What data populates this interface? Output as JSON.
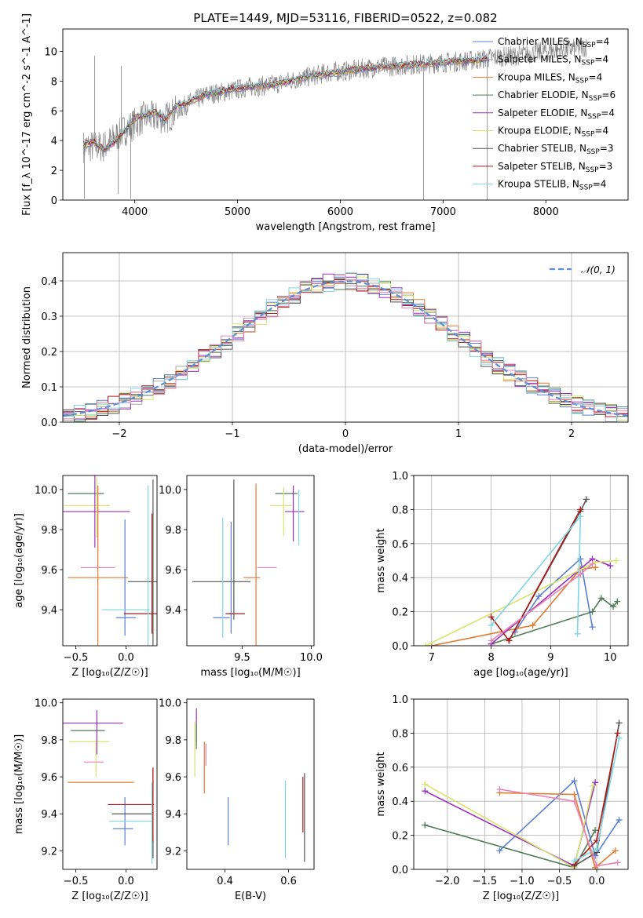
{
  "figure": {
    "title": "PLATE=1449, MJD=53116, FIBERID=0522, z=0.082"
  },
  "colors": {
    "Chabrier MILES": "#5b7fd6",
    "Salpeter MILES": "#a8a8a8",
    "Kroupa MILES": "#e07b2e",
    "Chabrier ELODIE": "#4e7a55",
    "Salpeter ELODIE": "#9b30c0",
    "Kroupa ELODIE": "#d6e56b",
    "Chabrier STELIB": "#555555",
    "Salpeter STELIB": "#b01818",
    "Kroupa STELIB": "#7fd6e0",
    "data": "#7f7f7f",
    "normal": "#5b8fd6",
    "pink": "#e884b4"
  },
  "legend": {
    "entries": [
      {
        "name": "Chabrier MILES",
        "nssp": "4"
      },
      {
        "name": "Salpeter MILES",
        "nssp": "4"
      },
      {
        "name": "Kroupa MILES",
        "nssp": "4"
      },
      {
        "name": "Chabrier ELODIE",
        "nssp": "6"
      },
      {
        "name": "Salpeter ELODIE",
        "nssp": "4"
      },
      {
        "name": "Kroupa ELODIE",
        "nssp": "4"
      },
      {
        "name": "Chabrier STELIB",
        "nssp": "3"
      },
      {
        "name": "Salpeter STELIB",
        "nssp": "3"
      },
      {
        "name": "Kroupa STELIB",
        "nssp": "4"
      }
    ],
    "normal_label": "𝒩(0, 1)"
  },
  "chart_data": [
    {
      "id": "spectrum",
      "type": "line",
      "xlabel": "wavelength [Angstrom, rest frame]",
      "ylabel": "Flux [f_λ 10^-17 erg cm^-2 s^-1 A^-1]",
      "xlim": [
        3300,
        8800
      ],
      "ylim": [
        0,
        11.5
      ],
      "xticks": [
        4000,
        5000,
        6000,
        7000,
        8000
      ],
      "yticks": [
        0,
        2,
        4,
        6,
        8,
        10
      ],
      "grid": false,
      "legend_position": "top-right",
      "model_trend": {
        "x": [
          3500,
          3600,
          3700,
          3800,
          3900,
          4000,
          4100,
          4200,
          4300,
          4400,
          4500,
          4700,
          4900,
          5100,
          5300,
          5500,
          5700,
          5900,
          6100,
          6300,
          6500,
          6700,
          6900,
          7100,
          7300,
          7400
        ],
        "y": [
          3.7,
          3.9,
          3.4,
          3.9,
          4.6,
          5.5,
          5.7,
          5.9,
          5.4,
          6.3,
          6.5,
          7.1,
          7.4,
          7.6,
          7.7,
          8.0,
          8.3,
          8.5,
          8.7,
          8.9,
          9.0,
          9.1,
          9.2,
          9.3,
          9.4,
          9.5
        ]
      },
      "data_trend": {
        "x": [
          3500,
          3700,
          3900,
          4100,
          4300,
          4500,
          4700,
          4900,
          5100,
          5300,
          5500,
          5700,
          5900,
          6100,
          6300,
          6500,
          6700,
          6900,
          7100,
          7300,
          7500,
          7700,
          7900,
          8100,
          8300,
          8400
        ],
        "y": [
          3.6,
          3.6,
          4.7,
          5.6,
          5.5,
          6.4,
          7.1,
          7.3,
          7.6,
          7.7,
          8.0,
          8.3,
          8.6,
          8.7,
          8.9,
          9.0,
          9.1,
          9.2,
          9.3,
          9.4,
          9.6,
          9.7,
          9.9,
          10.1,
          10.2,
          10.3
        ]
      },
      "data_noise_amplitude": 0.7,
      "spikes": [
        {
          "x": 3510,
          "y": 0.1
        },
        {
          "x": 3610,
          "y": 9.7
        },
        {
          "x": 3840,
          "y": 0.4
        },
        {
          "x": 3870,
          "y": 9.0
        },
        {
          "x": 3960,
          "y": 0.1
        },
        {
          "x": 6810,
          "y": 0.0
        },
        {
          "x": 7430,
          "y": 0.0
        }
      ]
    },
    {
      "id": "residuals",
      "type": "histogram",
      "xlabel": "(data-model)/error",
      "ylabel": "Normed distribution",
      "xlim": [
        -2.5,
        2.5
      ],
      "ylim": [
        0,
        0.48
      ],
      "xticks": [
        -2,
        -1,
        0,
        1,
        2
      ],
      "yticks": [
        0.0,
        0.1,
        0.2,
        0.3,
        0.4
      ],
      "grid": true,
      "bin_width": 0.1,
      "legend_position": "top-right",
      "normal": {
        "mean": 0,
        "sigma": 1
      }
    },
    {
      "id": "age-vs-Z",
      "type": "scatter",
      "xlabel": "Z [log₁₀(Z/Z☉)]",
      "ylabel": "age  [log₁₀(age/yr)]",
      "xlim": [
        -0.63,
        0.31
      ],
      "ylim": [
        9.22,
        10.07
      ],
      "xticks": [
        -0.5,
        0.0
      ],
      "yticks": [
        9.4,
        9.6,
        9.8,
        10.0
      ],
      "points": [
        {
          "series": "Chabrier ELODIE",
          "x": -0.4,
          "xerr": 0.18,
          "y": 9.98,
          "yerr": 0.0
        },
        {
          "series": "Kroupa ELODIE",
          "x": -0.39,
          "xerr": 0.23,
          "y": 9.92,
          "yerr": 0.0
        },
        {
          "series": "Salpeter ELODIE",
          "x": -0.31,
          "xerr": 0.35,
          "y": 9.89,
          "yerr": 0.18
        },
        {
          "series": "Kroupa MILES",
          "x": -0.28,
          "xerr": 0.3,
          "y": 9.56,
          "yerr": 0.46
        },
        {
          "series": "pink",
          "x": -0.28,
          "xerr": 0.17,
          "y": 9.61,
          "yerr": 0.0
        },
        {
          "series": "Kroupa ELODIE",
          "x": -0.29,
          "xerr": 0.0,
          "y": 9.91,
          "yerr": 0.15
        },
        {
          "series": "Chabrier MILES",
          "x": -0.01,
          "xerr": 0.0,
          "y": 9.56,
          "yerr": 0.29
        },
        {
          "series": "Kroupa STELIB",
          "x": 0.0,
          "xerr": 0.24,
          "y": 9.4,
          "yerr": 0.0
        },
        {
          "series": "Chabrier MILES",
          "x": 0.0,
          "xerr": 0.1,
          "y": 9.36,
          "yerr": 0.0
        },
        {
          "series": "Salpeter STELIB",
          "x": 0.18,
          "xerr": 0.2,
          "y": 9.38,
          "yerr": 0.0
        },
        {
          "series": "Chabrier STELIB",
          "x": 0.27,
          "xerr": 0.25,
          "y": 9.54,
          "yerr": 0.0
        },
        {
          "series": "Kroupa STELIB",
          "x": 0.22,
          "xerr": 0.0,
          "y": 9.6,
          "yerr": 0.42
        },
        {
          "series": "Chabrier STELIB",
          "x": 0.27,
          "xerr": 0.0,
          "y": 9.6,
          "yerr": 0.45
        },
        {
          "series": "Salpeter STELIB",
          "x": 0.26,
          "xerr": 0.0,
          "y": 9.58,
          "yerr": 0.3
        }
      ]
    },
    {
      "id": "age-vs-mass",
      "type": "scatter",
      "xlabel": "mass [log₁₀(M/M☉)]",
      "ylabel": "",
      "xlim": [
        9.1,
        10.02
      ],
      "ylim": [
        9.22,
        10.07
      ],
      "xticks": [
        9.5,
        10.0
      ],
      "yticks": [
        9.4,
        9.6,
        9.8,
        10.0
      ],
      "points": [
        {
          "series": "Chabrier STELIB",
          "x": 9.35,
          "xerr": 0.21,
          "y": 9.54,
          "yerr": 0.0
        },
        {
          "series": "Chabrier MILES",
          "x": 9.35,
          "xerr": 0.06,
          "y": 9.36,
          "yerr": 0.0
        },
        {
          "series": "Kroupa STELIB",
          "x": 9.36,
          "xerr": 0.0,
          "y": 9.56,
          "yerr": 0.3
        },
        {
          "series": "Chabrier MILES",
          "x": 9.42,
          "xerr": 0.0,
          "y": 9.56,
          "yerr": 0.28
        },
        {
          "series": "Salpeter STELIB",
          "x": 9.45,
          "xerr": 0.07,
          "y": 9.38,
          "yerr": 0.0
        },
        {
          "series": "Chabrier STELIB",
          "x": 9.44,
          "xerr": 0.0,
          "y": 9.7,
          "yerr": 0.35
        },
        {
          "series": "Kroupa MILES",
          "x": 9.57,
          "xerr": 0.06,
          "y": 9.56,
          "yerr": 0.0
        },
        {
          "series": "Kroupa MILES",
          "x": 9.6,
          "xerr": 0.0,
          "y": 9.6,
          "yerr": 0.43
        },
        {
          "series": "pink",
          "x": 9.68,
          "xerr": 0.07,
          "y": 9.61,
          "yerr": 0.0
        },
        {
          "series": "Kroupa ELODIE",
          "x": 9.78,
          "xerr": 0.08,
          "y": 9.92,
          "yerr": 0.0
        },
        {
          "series": "Chabrier ELODIE",
          "x": 9.82,
          "xerr": 0.08,
          "y": 9.98,
          "yerr": 0.0
        },
        {
          "series": "Kroupa ELODIE",
          "x": 9.8,
          "xerr": 0.0,
          "y": 9.89,
          "yerr": 0.12
        },
        {
          "series": "Salpeter ELODIE",
          "x": 9.88,
          "xerr": 0.07,
          "y": 9.89,
          "yerr": 0.0
        },
        {
          "series": "Salpeter ELODIE",
          "x": 9.87,
          "xerr": 0.0,
          "y": 9.88,
          "yerr": 0.14
        },
        {
          "series": "Kroupa STELIB",
          "x": 9.91,
          "xerr": 0.0,
          "y": 9.86,
          "yerr": 0.14
        }
      ]
    },
    {
      "id": "mass-weight-vs-age",
      "type": "line",
      "xlabel": "age  [log₁₀(age/yr)]",
      "ylabel": "mass weight",
      "xlim": [
        6.7,
        10.3
      ],
      "ylim": [
        0,
        1.0
      ],
      "xticks": [
        7,
        8,
        9,
        10
      ],
      "yticks": [
        0.0,
        0.2,
        0.4,
        0.6,
        0.8,
        1.0
      ],
      "grid": true,
      "series": [
        {
          "name": "Chabrier MILES",
          "x": [
            8.4,
            8.8,
            9.5,
            9.7
          ],
          "y": [
            0.08,
            0.29,
            0.51,
            0.11
          ]
        },
        {
          "name": "Kroupa MILES",
          "x": [
            7.0,
            8.7,
            9.5,
            9.75
          ],
          "y": [
            0.0,
            0.12,
            0.45,
            0.46
          ]
        },
        {
          "name": "Chabrier ELODIE",
          "x": [
            8.0,
            9.7,
            9.85,
            10.05,
            10.12
          ],
          "y": [
            0.01,
            0.2,
            0.28,
            0.23,
            0.26
          ]
        },
        {
          "name": "Salpeter ELODIE",
          "x": [
            8.0,
            9.7,
            10.0
          ],
          "y": [
            0.01,
            0.51,
            0.47
          ]
        },
        {
          "name": "Kroupa ELODIE",
          "x": [
            6.9,
            9.75,
            10.1
          ],
          "y": [
            0.0,
            0.49,
            0.5
          ]
        },
        {
          "name": "Chabrier STELIB",
          "x": [
            8.3,
            9.5,
            9.6
          ],
          "y": [
            0.03,
            0.79,
            0.86
          ]
        },
        {
          "name": "Salpeter STELIB",
          "x": [
            8.0,
            8.3,
            9.5
          ],
          "y": [
            0.17,
            0.03,
            0.8
          ]
        },
        {
          "name": "Kroupa STELIB",
          "x": [
            8.0,
            9.5,
            9.45
          ],
          "y": [
            0.12,
            0.76,
            0.07
          ]
        },
        {
          "name": "pink",
          "x": [
            8.0,
            9.5,
            9.7
          ],
          "y": [
            0.03,
            0.42,
            0.48
          ]
        }
      ]
    },
    {
      "id": "mass-vs-Z",
      "type": "scatter",
      "xlabel": "Z [log₁₀(Z/Z☉)]",
      "ylabel": "mass [log₁₀(M/M☉)]",
      "xlim": [
        -0.63,
        0.31
      ],
      "ylim": [
        9.1,
        10.02
      ],
      "xticks": [
        -0.5,
        0.0
      ],
      "yticks": [
        9.2,
        9.4,
        9.6,
        9.8,
        10.0
      ],
      "points": [
        {
          "series": "Salpeter ELODIE",
          "x": -0.33,
          "xerr": 0.3,
          "y": 9.89,
          "yerr": 0.0
        },
        {
          "series": "Chabrier ELODIE",
          "x": -0.38,
          "xerr": 0.17,
          "y": 9.85,
          "yerr": 0.0
        },
        {
          "series": "Kroupa ELODIE",
          "x": -0.37,
          "xerr": 0.2,
          "y": 9.79,
          "yerr": 0.0
        },
        {
          "series": "Salpeter ELODIE",
          "x": -0.29,
          "xerr": 0.0,
          "y": 9.84,
          "yerr": 0.12
        },
        {
          "series": "Kroupa ELODIE",
          "x": -0.3,
          "xerr": 0.0,
          "y": 9.7,
          "yerr": 0.1
        },
        {
          "series": "pink",
          "x": -0.32,
          "xerr": 0.1,
          "y": 9.68,
          "yerr": 0.0
        },
        {
          "series": "Kroupa MILES",
          "x": -0.25,
          "xerr": 0.33,
          "y": 9.57,
          "yerr": 0.0
        },
        {
          "series": "Chabrier MILES",
          "x": -0.01,
          "xerr": 0.0,
          "y": 9.36,
          "yerr": 0.13
        },
        {
          "series": "Salpeter STELIB",
          "x": 0.05,
          "xerr": 0.23,
          "y": 9.45,
          "yerr": 0.0
        },
        {
          "series": "Kroupa STELIB",
          "x": 0.05,
          "xerr": 0.22,
          "y": 9.36,
          "yerr": 0.0
        },
        {
          "series": "Chabrier STELIB",
          "x": 0.06,
          "xerr": 0.2,
          "y": 9.4,
          "yerr": 0.0
        },
        {
          "series": "Chabrier MILES",
          "x": -0.03,
          "xerr": 0.1,
          "y": 9.32,
          "yerr": 0.0
        },
        {
          "series": "Kroupa STELIB",
          "x": 0.26,
          "xerr": 0.0,
          "y": 9.35,
          "yerr": 0.22
        },
        {
          "series": "Chabrier STELIB",
          "x": 0.27,
          "xerr": 0.0,
          "y": 9.4,
          "yerr": 0.24
        },
        {
          "series": "Salpeter STELIB",
          "x": 0.27,
          "xerr": 0.0,
          "y": 9.45,
          "yerr": 0.2
        }
      ]
    },
    {
      "id": "mass-vs-ebv",
      "type": "scatter",
      "xlabel": "E(B-V)",
      "ylabel": "",
      "xlim": [
        0.28,
        0.68
      ],
      "ylim": [
        9.1,
        10.02
      ],
      "xticks": [
        0.4,
        0.6
      ],
      "yticks": [
        9.2,
        9.4,
        9.6,
        9.8,
        10.0
      ],
      "points": [
        {
          "series": "Kroupa ELODIE",
          "x": 0.305,
          "xerr": 0.0,
          "y": 9.75,
          "yerr": 0.15
        },
        {
          "series": "Salpeter ELODIE",
          "x": 0.31,
          "xerr": 0.0,
          "y": 9.88,
          "yerr": 0.09
        },
        {
          "series": "Chabrier ELODIE",
          "x": 0.31,
          "xerr": 0.0,
          "y": 9.82,
          "yerr": 0.07
        },
        {
          "series": "Kroupa MILES",
          "x": 0.335,
          "xerr": 0.0,
          "y": 9.65,
          "yerr": 0.14
        },
        {
          "series": "pink",
          "x": 0.34,
          "xerr": 0.0,
          "y": 9.72,
          "yerr": 0.06
        },
        {
          "series": "Chabrier MILES",
          "x": 0.41,
          "xerr": 0.0,
          "y": 9.36,
          "yerr": 0.13
        },
        {
          "series": "Kroupa STELIB",
          "x": 0.59,
          "xerr": 0.0,
          "y": 9.37,
          "yerr": 0.21
        },
        {
          "series": "Salpeter STELIB",
          "x": 0.645,
          "xerr": 0.0,
          "y": 9.45,
          "yerr": 0.15
        },
        {
          "series": "Chabrier STELIB",
          "x": 0.65,
          "xerr": 0.0,
          "y": 9.38,
          "yerr": 0.24
        }
      ]
    },
    {
      "id": "mass-weight-vs-Z",
      "type": "line",
      "xlabel": "Z [log₁₀(Z/Z☉)]",
      "ylabel": "mass weight",
      "xlim": [
        -2.45,
        0.42
      ],
      "ylim": [
        0,
        1.0
      ],
      "xticks": [
        -2.0,
        -1.5,
        -1.0,
        -0.5,
        0.0
      ],
      "yticks": [
        0.0,
        0.2,
        0.4,
        0.6,
        0.8,
        1.0
      ],
      "grid": true,
      "series": [
        {
          "name": "Chabrier MILES",
          "x": [
            -1.3,
            -0.3,
            -0.02,
            0.3
          ],
          "y": [
            0.11,
            0.52,
            0.08,
            0.29
          ]
        },
        {
          "name": "Kroupa MILES",
          "x": [
            -1.3,
            -0.3,
            -0.02,
            0.25
          ],
          "y": [
            0.45,
            0.44,
            0.01,
            0.11
          ]
        },
        {
          "name": "Chabrier ELODIE",
          "x": [
            -2.3,
            -0.3,
            -0.02
          ],
          "y": [
            0.26,
            0.01,
            0.23
          ]
        },
        {
          "name": "Salpeter ELODIE",
          "x": [
            -2.3,
            -0.3,
            -0.02
          ],
          "y": [
            0.46,
            0.02,
            0.51
          ]
        },
        {
          "name": "Kroupa ELODIE",
          "x": [
            -2.3,
            -0.3,
            -0.05
          ],
          "y": [
            0.5,
            0.01,
            0.49
          ]
        },
        {
          "name": "Chabrier STELIB",
          "x": [
            -0.3,
            0.0,
            0.3
          ],
          "y": [
            0.02,
            0.1,
            0.86
          ]
        },
        {
          "name": "Salpeter STELIB",
          "x": [
            -0.3,
            0.0,
            0.28
          ],
          "y": [
            0.03,
            0.17,
            0.8
          ]
        },
        {
          "name": "Kroupa STELIB",
          "x": [
            -0.3,
            0.0,
            0.3
          ],
          "y": [
            0.05,
            0.12,
            0.77
          ]
        },
        {
          "name": "pink",
          "x": [
            -1.3,
            -0.3,
            0.0,
            0.28
          ],
          "y": [
            0.47,
            0.4,
            0.02,
            0.04
          ]
        }
      ]
    }
  ]
}
